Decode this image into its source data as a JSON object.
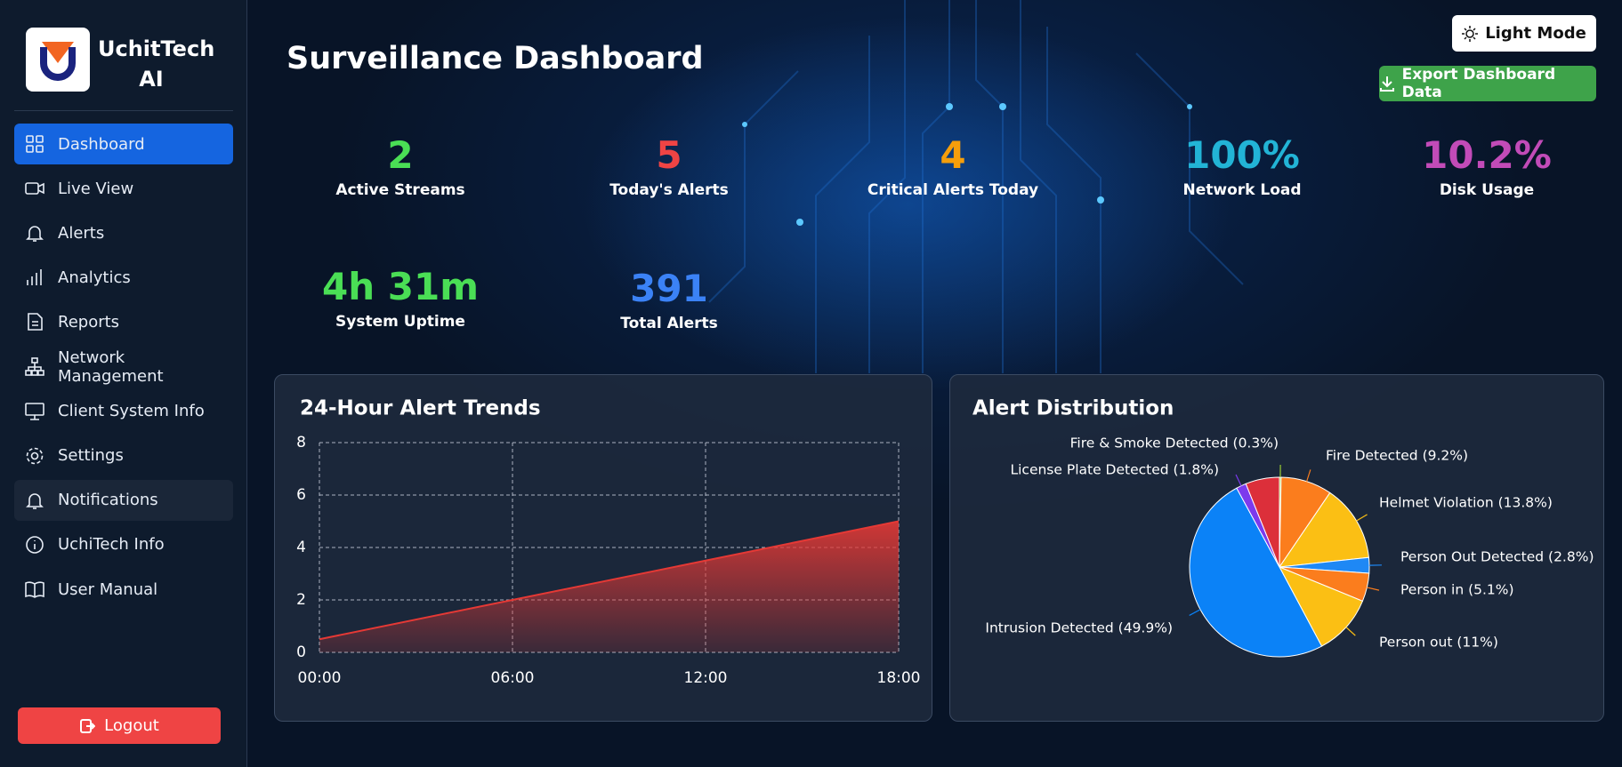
{
  "brand": {
    "name": "UchitTech AI"
  },
  "nav": {
    "items": [
      "Dashboard",
      "Live View",
      "Alerts",
      "Analytics",
      "Reports",
      "Network Management",
      "Client System Info",
      "Settings",
      "Notifications",
      "UchiTech Info",
      "User Manual"
    ],
    "logout": "Logout"
  },
  "header": {
    "title": "Surveillance Dashboard",
    "theme_button": "Light Mode",
    "export_button": "Export Dashboard Data"
  },
  "stats": [
    {
      "value": "2",
      "label": "Active Streams"
    },
    {
      "value": "5",
      "label": "Today's Alerts"
    },
    {
      "value": "4",
      "label": "Critical Alerts Today"
    },
    {
      "value": "100%",
      "label": "Network Load"
    },
    {
      "value": "10.2%",
      "label": "Disk Usage"
    },
    {
      "value": "4h 31m",
      "label": "System Uptime"
    },
    {
      "value": "391",
      "label": "Total Alerts"
    }
  ],
  "chart_data": [
    {
      "type": "area",
      "title": "24-Hour Alert Trends",
      "categories": [
        "00:00",
        "06:00",
        "12:00",
        "18:00"
      ],
      "values": [
        0.5,
        2,
        3.5,
        5
      ],
      "color": "#e53935",
      "ylim": [
        0,
        8
      ],
      "yticks": [
        0,
        2,
        4,
        6,
        8
      ],
      "grid": true
    },
    {
      "type": "pie",
      "title": "Alert Distribution",
      "values": [
        0.3,
        9.2,
        13.8,
        2.8,
        5.1,
        11,
        49.9,
        1.8,
        6.1
      ],
      "value_labels": [
        "Fire & Smoke Detected (0.3%)",
        "Fire Detected (9.2%)",
        "Helmet Violation (13.8%)",
        "Person Out Detected (2.8%)",
        "Person in (5.1%)",
        "Person out (11%)",
        "Intrusion Detected (49.9%)",
        "License Plate Detected (1.8%)",
        null
      ],
      "colors": [
        "#9acd32",
        "#fb7d1d",
        "#fbbf14",
        "#1e88f5",
        "#fb7d1d",
        "#fbbf14",
        "#0b82f7",
        "#7c3aed",
        "#dc2f3a"
      ]
    }
  ]
}
